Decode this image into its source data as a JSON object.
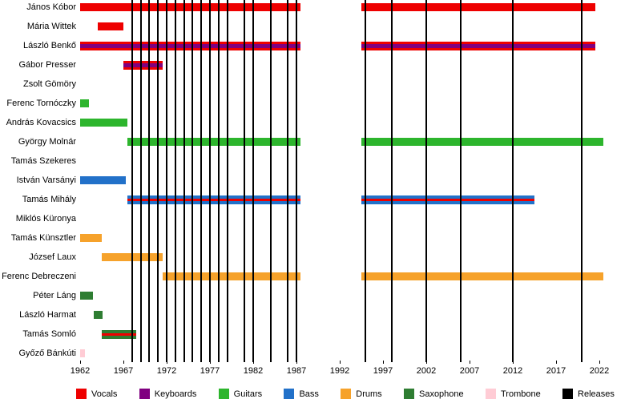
{
  "chart_data": {
    "type": "timeline",
    "x_axis": {
      "min": 1962,
      "max": 2022,
      "ticks": [
        1962,
        1967,
        1972,
        1977,
        1982,
        1987,
        1992,
        1997,
        2002,
        2007,
        2012,
        2017,
        2022
      ]
    },
    "roles": {
      "vocals": "#ee0000",
      "keyboards": "#800080",
      "guitars": "#2db52d",
      "bass": "#2271c9",
      "drums": "#f6a22b",
      "saxophone": "#2e7d32",
      "trombone": "#ffccd5",
      "releases": "#000000"
    },
    "members": [
      {
        "name": "János Kóbor",
        "segments": [
          {
            "start": 1962,
            "end": 1987.5,
            "roles": [
              "vocals"
            ]
          },
          {
            "start": 1994.5,
            "end": 2021.5,
            "roles": [
              "vocals"
            ]
          }
        ]
      },
      {
        "name": "Mária Wittek",
        "segments": [
          {
            "start": 1964,
            "end": 1967,
            "roles": [
              "vocals"
            ]
          }
        ]
      },
      {
        "name": "László Benkő",
        "segments": [
          {
            "start": 1962,
            "end": 1987.5,
            "roles": [
              "vocals",
              "keyboards",
              "vocals"
            ]
          },
          {
            "start": 1994.5,
            "end": 2021.5,
            "roles": [
              "vocals",
              "keyboards",
              "vocals"
            ]
          }
        ]
      },
      {
        "name": "Gábor Presser",
        "segments": [
          {
            "start": 1967,
            "end": 1971.5,
            "roles": [
              "vocals",
              "keyboards",
              "vocals"
            ]
          }
        ]
      },
      {
        "name": "Zsolt Gömöry",
        "segments": []
      },
      {
        "name": "Ferenc Tornóczky",
        "segments": [
          {
            "start": 1962,
            "end": 1963,
            "roles": [
              "guitars"
            ]
          }
        ]
      },
      {
        "name": "András Kovacsics",
        "segments": [
          {
            "start": 1962,
            "end": 1967.5,
            "roles": [
              "guitars"
            ]
          }
        ]
      },
      {
        "name": "György Molnár",
        "segments": [
          {
            "start": 1967.5,
            "end": 1987.5,
            "roles": [
              "guitars"
            ]
          },
          {
            "start": 1994.5,
            "end": 2022.5,
            "roles": [
              "guitars"
            ]
          }
        ]
      },
      {
        "name": "Tamás Szekeres",
        "segments": []
      },
      {
        "name": "István Varsányi",
        "segments": [
          {
            "start": 1962,
            "end": 1967.3,
            "roles": [
              "bass"
            ]
          }
        ]
      },
      {
        "name": "Tamás Mihály",
        "segments": [
          {
            "start": 1967.5,
            "end": 1987.5,
            "roles": [
              "bass",
              "vocals",
              "bass"
            ]
          },
          {
            "start": 1994.5,
            "end": 2014.5,
            "roles": [
              "bass",
              "vocals",
              "bass"
            ]
          }
        ]
      },
      {
        "name": "Miklós Küronya",
        "segments": []
      },
      {
        "name": "Tamás Künsztler",
        "segments": [
          {
            "start": 1962,
            "end": 1964.5,
            "roles": [
              "drums"
            ]
          }
        ]
      },
      {
        "name": "József Laux",
        "segments": [
          {
            "start": 1964.5,
            "end": 1971.5,
            "roles": [
              "drums"
            ]
          }
        ]
      },
      {
        "name": "Ferenc Debreczeni",
        "segments": [
          {
            "start": 1971.5,
            "end": 1987.5,
            "roles": [
              "drums"
            ]
          },
          {
            "start": 1994.5,
            "end": 2022.5,
            "roles": [
              "drums"
            ]
          }
        ]
      },
      {
        "name": "Péter Láng",
        "segments": [
          {
            "start": 1962,
            "end": 1963.5,
            "roles": [
              "saxophone"
            ]
          }
        ]
      },
      {
        "name": "László Harmat",
        "segments": [
          {
            "start": 1963.6,
            "end": 1964.6,
            "roles": [
              "saxophone"
            ]
          }
        ]
      },
      {
        "name": "Tamás Somló",
        "segments": [
          {
            "start": 1964.5,
            "end": 1968.5,
            "roles": [
              "saxophone",
              "vocals",
              "saxophone"
            ]
          }
        ]
      },
      {
        "name": "Győző Bánkúti",
        "segments": [
          {
            "start": 1962,
            "end": 1962.6,
            "roles": [
              "trombone"
            ]
          }
        ]
      }
    ],
    "releases": [
      1968,
      1969,
      1970,
      1971,
      1972,
      1973,
      1974,
      1975,
      1976,
      1977,
      1978,
      1979,
      1981,
      1982,
      1984,
      1986,
      1987,
      1995,
      1998,
      2002,
      2006,
      2012,
      2020
    ]
  },
  "legend": {
    "items": [
      {
        "label": "Vocals",
        "role": "vocals"
      },
      {
        "label": "Keyboards",
        "role": "keyboards"
      },
      {
        "label": "Guitars",
        "role": "guitars"
      },
      {
        "label": "Bass",
        "role": "bass"
      },
      {
        "label": "Drums",
        "role": "drums"
      },
      {
        "label": "Saxophone",
        "role": "saxophone"
      },
      {
        "label": "Trombone",
        "role": "trombone"
      },
      {
        "label": "Releases",
        "role": "releases"
      }
    ]
  }
}
